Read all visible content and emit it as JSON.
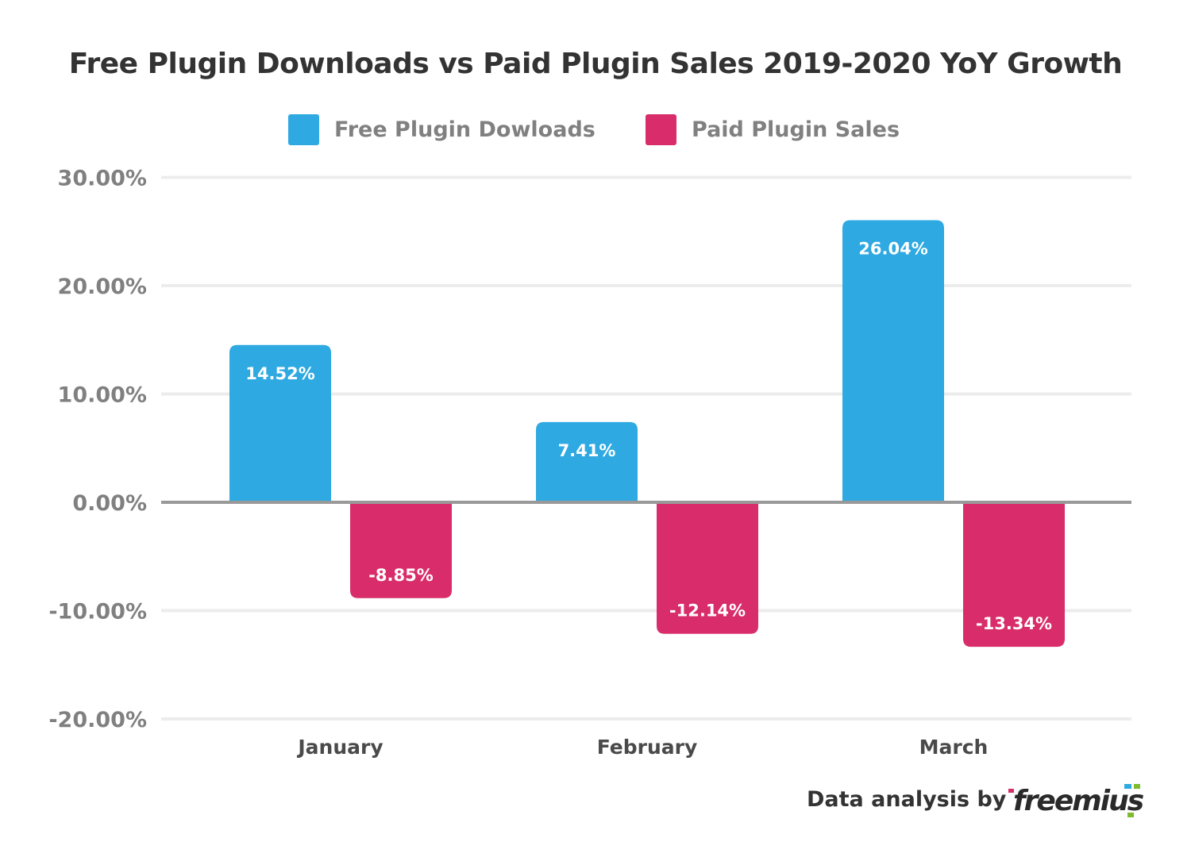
{
  "chart_data": {
    "type": "bar",
    "title": "Free Plugin Downloads vs Paid Plugin Sales 2019-2020 YoY Growth",
    "categories": [
      "January",
      "February",
      "March"
    ],
    "series": [
      {
        "name": "Free Plugin Dowloads",
        "color": "#2EA9E1",
        "values": [
          14.52,
          7.41,
          26.04
        ],
        "labels": [
          "14.52%",
          "7.41%",
          "26.04%"
        ]
      },
      {
        "name": "Paid Plugin Sales",
        "color": "#D82D6A",
        "values": [
          -8.85,
          -12.14,
          -13.34
        ],
        "labels": [
          "-8.85%",
          "-12.14%",
          "-13.34%"
        ]
      }
    ],
    "ylim": [
      -20,
      30
    ],
    "yticks": [
      30,
      20,
      10,
      0,
      -10,
      -20
    ],
    "ytick_labels": [
      "30.00%",
      "20.00%",
      "10.00%",
      "0.00%",
      "-10.00%",
      "-20.00%"
    ],
    "xlabel": "",
    "ylabel": "",
    "grid": true,
    "legend": "top-center"
  },
  "footer": {
    "credit": "Data analysis by",
    "logo_text": "freemius"
  }
}
